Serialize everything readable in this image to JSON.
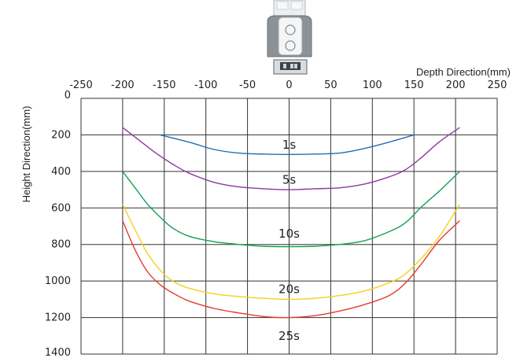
{
  "chart_data": {
    "type": "line",
    "xlabel": "Depth Direction(mm)",
    "ylabel": "Height Direction(mm)",
    "x_ticks": [
      "-250",
      "-200",
      "-150",
      "-100",
      "-50",
      "0",
      "50",
      "100",
      "150",
      "200",
      "250"
    ],
    "y_ticks": [
      "0",
      "200",
      "400",
      "600",
      "800",
      "1000",
      "1200",
      "1400"
    ],
    "xlim": [
      -250,
      250
    ],
    "ylim": [
      0,
      1400
    ],
    "y_inverted": true,
    "grid": true,
    "series": [
      {
        "name": "1s",
        "color": "#1f6fb4",
        "x": [
          -155,
          -120,
          -90,
          -60,
          -30,
          0,
          30,
          60,
          90,
          120,
          150
        ],
        "y": [
          200,
          240,
          280,
          300,
          305,
          307,
          305,
          300,
          275,
          240,
          200
        ]
      },
      {
        "name": "5s",
        "color": "#8b3a9e",
        "x": [
          -200,
          -180,
          -160,
          -140,
          -120,
          -90,
          -60,
          -30,
          0,
          30,
          60,
          90,
          120,
          140,
          160,
          180,
          205
        ],
        "y": [
          160,
          230,
          300,
          360,
          410,
          460,
          485,
          495,
          500,
          495,
          490,
          470,
          430,
          390,
          320,
          240,
          160
        ]
      },
      {
        "name": "10s",
        "color": "#14a050",
        "x": [
          -200,
          -185,
          -170,
          -155,
          -140,
          -120,
          -90,
          -60,
          -30,
          0,
          30,
          60,
          90,
          120,
          140,
          160,
          180,
          205
        ],
        "y": [
          400,
          490,
          580,
          650,
          710,
          755,
          785,
          800,
          810,
          812,
          810,
          800,
          780,
          730,
          680,
          590,
          510,
          400
        ]
      },
      {
        "name": "20s",
        "color": "#f2d21b",
        "x": [
          -200,
          -185,
          -170,
          -155,
          -140,
          -120,
          -90,
          -60,
          -30,
          0,
          30,
          60,
          90,
          120,
          140,
          160,
          180,
          205
        ],
        "y": [
          580,
          720,
          850,
          940,
          1000,
          1040,
          1070,
          1085,
          1095,
          1100,
          1095,
          1080,
          1055,
          1010,
          960,
          870,
          760,
          580
        ]
      },
      {
        "name": "25s",
        "color": "#e43a2f",
        "x": [
          -200,
          -185,
          -170,
          -155,
          -140,
          -120,
          -90,
          -60,
          -30,
          0,
          30,
          60,
          90,
          120,
          140,
          160,
          180,
          205
        ],
        "y": [
          670,
          830,
          950,
          1020,
          1065,
          1110,
          1150,
          1175,
          1195,
          1200,
          1190,
          1165,
          1130,
          1080,
          1010,
          900,
          780,
          670
        ]
      }
    ],
    "series_labels": [
      {
        "text": "1s",
        "x": 0,
        "y": 255
      },
      {
        "text": "5s",
        "x": 0,
        "y": 445
      },
      {
        "text": "10s",
        "x": 0,
        "y": 740
      },
      {
        "text": "20s",
        "x": 0,
        "y": 1045
      },
      {
        "text": "25s",
        "x": 0,
        "y": 1300
      }
    ]
  }
}
